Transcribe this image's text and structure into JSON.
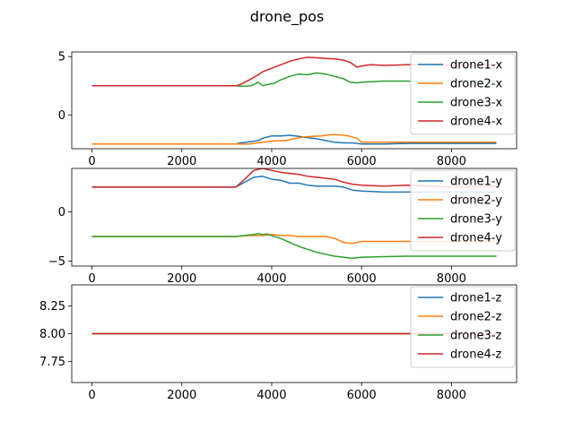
{
  "chart_data": {
    "title": "drone_pos",
    "colors": {
      "drone1": "#1f77b4",
      "drone2": "#ff7f0e",
      "drone3": "#2ca02c",
      "drone4": "#d62728"
    },
    "panels": [
      {
        "type": "line",
        "xlim": [
          -450,
          9450
        ],
        "ylim": [
          -2.9,
          5.4
        ],
        "xticks": [
          0,
          2000,
          4000,
          6000,
          8000
        ],
        "xtick_labels": [
          "0",
          "2000",
          "4000",
          "6000",
          "8000"
        ],
        "yticks": [
          5,
          0
        ],
        "ytick_labels": [
          "5",
          "0"
        ],
        "legend_loc": "upper right",
        "series": [
          {
            "name": "drone1-x",
            "color": "#1f77b4",
            "x": [
              0,
              3200,
              3300,
              3500,
              3700,
              3800,
              3900,
              4000,
              4200,
              4400,
              4600,
              4800,
              5000,
              5200,
              5400,
              5600,
              5800,
              6000,
              6500,
              7000,
              7500,
              8000,
              8500,
              9000
            ],
            "y": [
              -2.5,
              -2.5,
              -2.4,
              -2.3,
              -2.2,
              -2.0,
              -1.9,
              -1.8,
              -1.8,
              -1.75,
              -1.85,
              -1.95,
              -2.05,
              -2.2,
              -2.35,
              -2.4,
              -2.4,
              -2.5,
              -2.5,
              -2.45,
              -2.45,
              -2.45,
              -2.45,
              -2.45
            ]
          },
          {
            "name": "drone2-x",
            "color": "#ff7f0e",
            "x": [
              0,
              3200,
              3500,
              3800,
              4000,
              4300,
              4500,
              4700,
              4900,
              5100,
              5300,
              5500,
              5700,
              5900,
              6000,
              6500,
              7000,
              7500,
              8000,
              8500,
              9000
            ],
            "y": [
              -2.5,
              -2.5,
              -2.5,
              -2.35,
              -2.25,
              -2.2,
              -2.05,
              -1.9,
              -1.85,
              -1.8,
              -1.7,
              -1.7,
              -1.8,
              -2.0,
              -2.35,
              -2.35,
              -2.35,
              -2.35,
              -2.35,
              -2.35,
              -2.35
            ]
          },
          {
            "name": "drone3-x",
            "color": "#2ca02c",
            "x": [
              0,
              3200,
              3350,
              3550,
              3700,
              3800,
              3900,
              4050,
              4200,
              4400,
              4600,
              4800,
              5000,
              5200,
              5400,
              5600,
              5750,
              5900,
              6000,
              6500,
              7000,
              7500,
              8000,
              8500,
              9000
            ],
            "y": [
              2.5,
              2.5,
              2.45,
              2.5,
              2.8,
              2.5,
              2.6,
              2.7,
              3.0,
              3.3,
              3.5,
              3.45,
              3.6,
              3.5,
              3.3,
              3.1,
              2.8,
              2.75,
              2.8,
              2.9,
              2.9,
              2.85,
              2.9,
              2.9,
              2.9
            ]
          },
          {
            "name": "drone4-x",
            "color": "#d62728",
            "x": [
              0,
              3200,
              3300,
              3400,
              3600,
              3800,
              4000,
              4200,
              4400,
              4600,
              4800,
              5000,
              5200,
              5400,
              5600,
              5750,
              5900,
              6000,
              6200,
              6500,
              7000,
              7500,
              8000,
              8500,
              9000
            ],
            "y": [
              2.5,
              2.5,
              2.6,
              2.8,
              3.2,
              3.7,
              4.0,
              4.3,
              4.6,
              4.8,
              4.95,
              4.9,
              4.85,
              4.8,
              4.7,
              4.5,
              4.1,
              4.2,
              4.3,
              4.25,
              4.3,
              4.3,
              4.25,
              4.3,
              4.3
            ]
          }
        ]
      },
      {
        "type": "line",
        "xlim": [
          -450,
          9450
        ],
        "ylim": [
          -5.5,
          4.4
        ],
        "xticks": [
          0,
          2000,
          4000,
          6000,
          8000
        ],
        "xtick_labels": [
          "0",
          "2000",
          "4000",
          "6000",
          "8000"
        ],
        "yticks": [
          0,
          -5
        ],
        "ytick_labels": [
          "0",
          "−5"
        ],
        "legend_loc": "upper right",
        "series": [
          {
            "name": "drone1-y",
            "color": "#1f77b4",
            "x": [
              0,
              3200,
              3400,
              3600,
              3800,
              4000,
              4200,
              4400,
              4600,
              4800,
              5000,
              5200,
              5400,
              5600,
              5800,
              6000,
              6500,
              7000,
              7500,
              8000,
              8500,
              9000
            ],
            "y": [
              2.5,
              2.5,
              3.0,
              3.5,
              3.6,
              3.3,
              3.2,
              2.9,
              2.9,
              2.7,
              2.6,
              2.6,
              2.6,
              2.5,
              2.2,
              2.1,
              2.0,
              2.0,
              2.0,
              2.0,
              2.0,
              2.0
            ]
          },
          {
            "name": "drone2-y",
            "color": "#ff7f0e",
            "x": [
              0,
              3200,
              3500,
              3800,
              4000,
              4200,
              4400,
              4600,
              4800,
              5000,
              5200,
              5400,
              5600,
              5800,
              6000,
              6500,
              7000,
              7500,
              8000,
              8500,
              9000
            ],
            "y": [
              -2.5,
              -2.5,
              -2.4,
              -2.4,
              -2.3,
              -2.4,
              -2.4,
              -2.5,
              -2.5,
              -2.5,
              -2.5,
              -2.7,
              -3.1,
              -3.2,
              -3.0,
              -3.0,
              -3.0,
              -3.0,
              -3.0,
              -3.0,
              -3.0
            ]
          },
          {
            "name": "drone3-y",
            "color": "#2ca02c",
            "x": [
              0,
              3200,
              3400,
              3600,
              3700,
              3800,
              3900,
              4000,
              4200,
              4400,
              4600,
              4800,
              5000,
              5200,
              5400,
              5600,
              5800,
              6000,
              6500,
              7000,
              7500,
              8000,
              8500,
              9000
            ],
            "y": [
              -2.5,
              -2.5,
              -2.4,
              -2.3,
              -2.2,
              -2.3,
              -2.25,
              -2.4,
              -2.7,
              -3.1,
              -3.5,
              -3.8,
              -4.1,
              -4.3,
              -4.5,
              -4.6,
              -4.7,
              -4.6,
              -4.55,
              -4.5,
              -4.5,
              -4.5,
              -4.5,
              -4.5
            ]
          },
          {
            "name": "drone4-y",
            "color": "#d62728",
            "x": [
              0,
              3200,
              3400,
              3600,
              3800,
              4000,
              4200,
              4400,
              4600,
              4800,
              5000,
              5200,
              5400,
              5600,
              5800,
              6000,
              6500,
              7000,
              7500,
              8000,
              8500,
              9000
            ],
            "y": [
              2.5,
              2.5,
              3.3,
              4.2,
              4.4,
              4.2,
              4.0,
              3.9,
              3.8,
              3.6,
              3.5,
              3.4,
              3.3,
              3.0,
              2.8,
              2.7,
              2.6,
              2.7,
              2.6,
              2.5,
              2.5,
              2.6
            ]
          }
        ]
      },
      {
        "type": "line",
        "xlim": [
          -450,
          9450
        ],
        "ylim": [
          7.56,
          8.44
        ],
        "xticks": [
          0,
          2000,
          4000,
          6000,
          8000
        ],
        "xtick_labels": [
          "0",
          "2000",
          "4000",
          "6000",
          "8000"
        ],
        "yticks": [
          8.25,
          8.0,
          7.75
        ],
        "ytick_labels": [
          "8.25",
          "8.00",
          "7.75"
        ],
        "legend_loc": "upper right",
        "series": [
          {
            "name": "drone1-z",
            "color": "#1f77b4",
            "x": [
              0,
              9000
            ],
            "y": [
              8.0,
              8.0
            ]
          },
          {
            "name": "drone2-z",
            "color": "#ff7f0e",
            "x": [
              0,
              9000
            ],
            "y": [
              8.0,
              8.0
            ]
          },
          {
            "name": "drone3-z",
            "color": "#2ca02c",
            "x": [
              0,
              9000
            ],
            "y": [
              8.0,
              8.0
            ]
          },
          {
            "name": "drone4-z",
            "color": "#d62728",
            "x": [
              0,
              9000
            ],
            "y": [
              8.0,
              8.0
            ]
          }
        ]
      }
    ]
  }
}
